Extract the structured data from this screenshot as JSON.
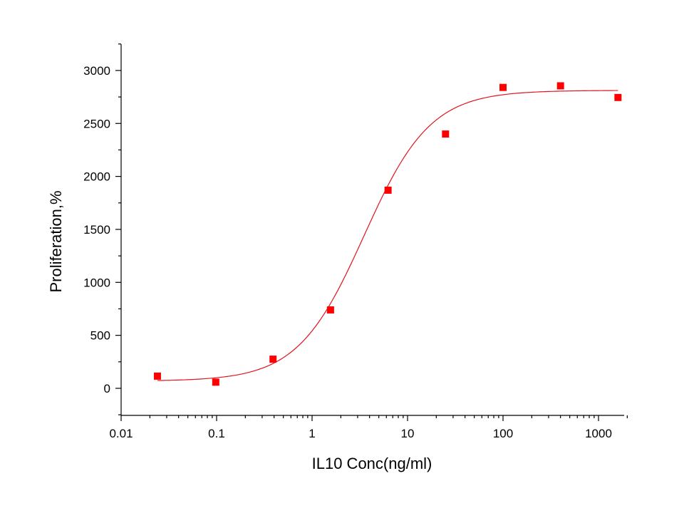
{
  "chart_data": {
    "type": "scatter",
    "title": "",
    "xlabel": "IL10 Conc(ng/ml)",
    "ylabel": "Proliferation,%",
    "x_scale": "log",
    "xlim": [
      0.01,
      2000
    ],
    "ylim": [
      -250,
      3250
    ],
    "x_ticks": [
      0.01,
      0.1,
      1,
      10,
      100,
      1000
    ],
    "x_tick_labels": [
      "0.01",
      "0.1",
      "1",
      "10",
      "100",
      "1000"
    ],
    "y_ticks": [
      0,
      500,
      1000,
      1500,
      2000,
      2500,
      3000
    ],
    "y_tick_labels": [
      "0",
      "500",
      "1000",
      "1500",
      "2000",
      "2500",
      "3000"
    ],
    "grid": false,
    "legend": "none",
    "series": [
      {
        "type": "scatter",
        "marker": "square",
        "color": "#ff0000",
        "x": [
          0.024,
          0.098,
          0.39,
          1.56,
          6.25,
          25,
          100,
          400,
          1600
        ],
        "y": [
          115,
          58,
          275,
          740,
          1870,
          2400,
          2840,
          2855,
          2745
        ]
      },
      {
        "type": "line",
        "color": "#e0141e",
        "model": "4-parameter logistic fit",
        "x_range": [
          0.024,
          1600
        ],
        "bottom": 68,
        "top": 2812,
        "ec50": 3.5,
        "hill": 1.25
      }
    ]
  }
}
